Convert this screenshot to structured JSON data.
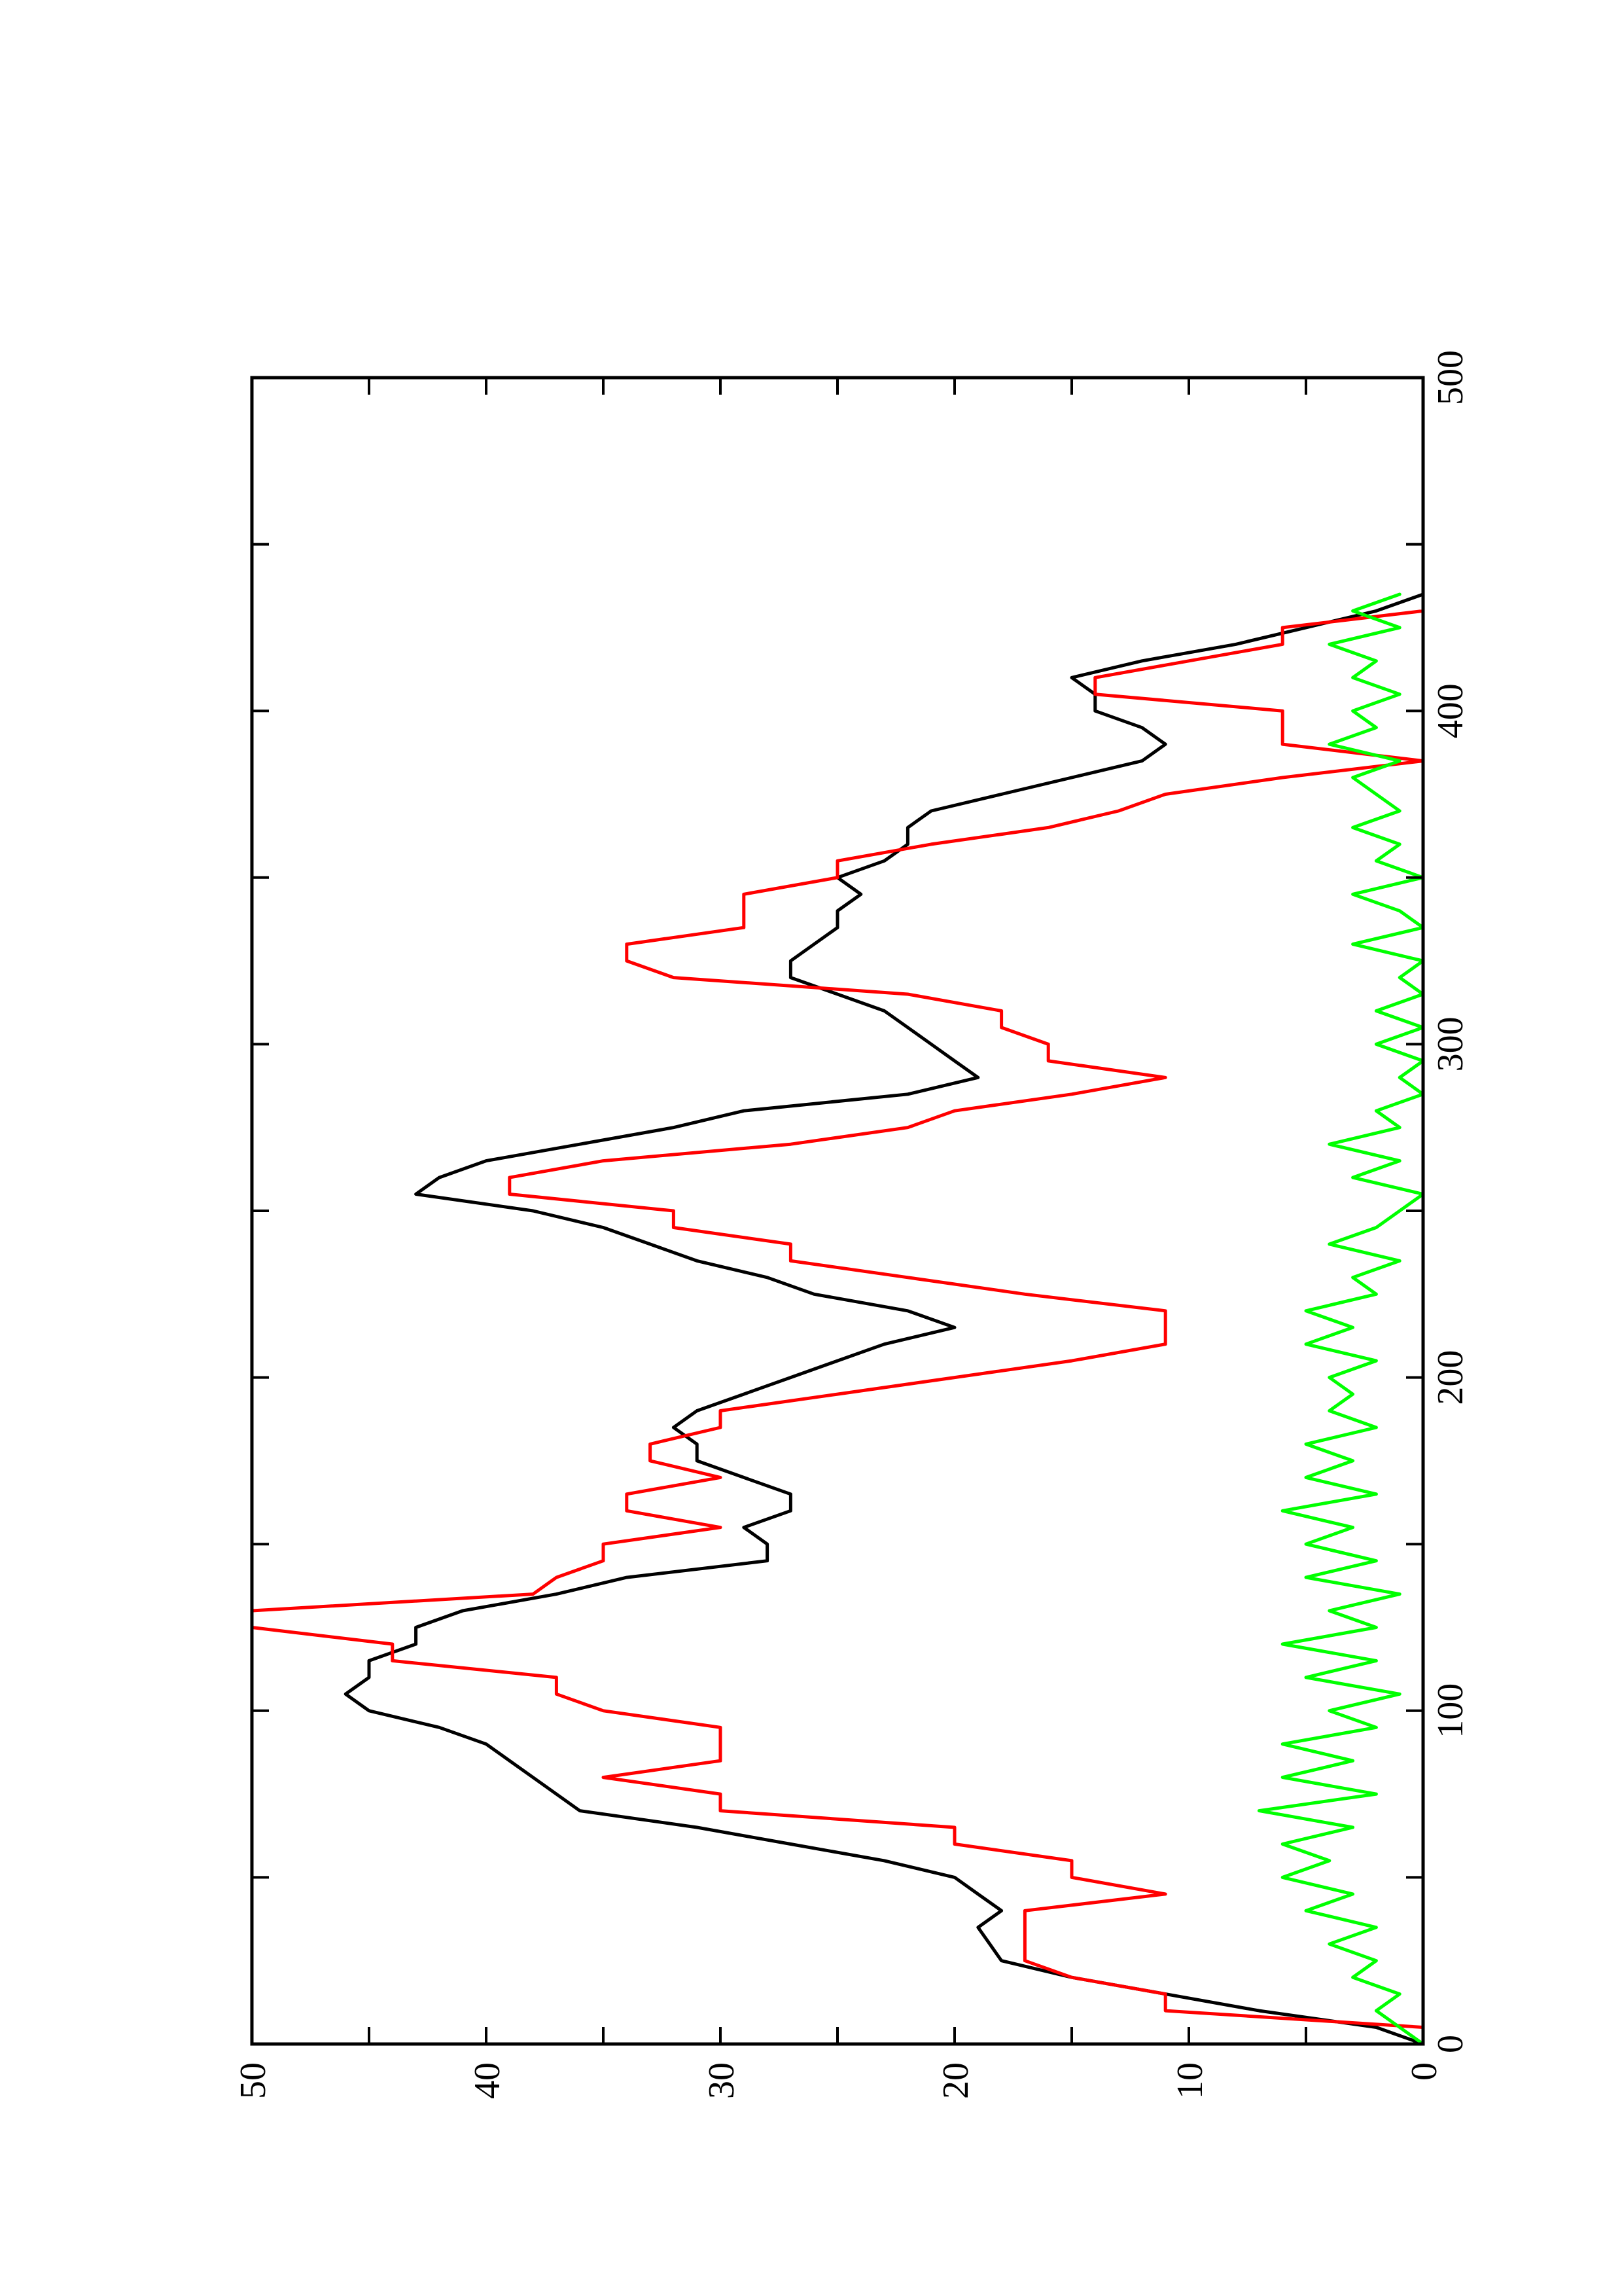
{
  "chart_data": {
    "type": "line",
    "title": "",
    "xlabel": "",
    "ylabel": "",
    "xlim": [
      0,
      500
    ],
    "ylim": [
      0,
      50
    ],
    "grid": false,
    "orientation": "page rotated 90 degrees counter-clockwise",
    "x_ticks": [
      0,
      100,
      200,
      300,
      400,
      500
    ],
    "x_minor_ticks": [
      50,
      150,
      250,
      350,
      450
    ],
    "y_ticks": [
      0,
      10,
      20,
      30,
      40,
      50
    ],
    "y_minor_ticks": [
      5,
      15,
      25,
      35,
      45
    ],
    "series": [
      {
        "color": "#000000",
        "points": [
          [
            0,
            0
          ],
          [
            5,
            2
          ],
          [
            10,
            7
          ],
          [
            15,
            11
          ],
          [
            20,
            15
          ],
          [
            25,
            18
          ],
          [
            30,
            18.5
          ],
          [
            35,
            19
          ],
          [
            40,
            18
          ],
          [
            45,
            19
          ],
          [
            50,
            20
          ],
          [
            55,
            23
          ],
          [
            60,
            27
          ],
          [
            65,
            31
          ],
          [
            70,
            36
          ],
          [
            75,
            37
          ],
          [
            80,
            38
          ],
          [
            85,
            39
          ],
          [
            90,
            40
          ],
          [
            95,
            42
          ],
          [
            100,
            45
          ],
          [
            105,
            46
          ],
          [
            110,
            45
          ],
          [
            115,
            45
          ],
          [
            120,
            43
          ],
          [
            125,
            43
          ],
          [
            130,
            41
          ],
          [
            135,
            37
          ],
          [
            140,
            34
          ],
          [
            145,
            28
          ],
          [
            150,
            28
          ],
          [
            155,
            29
          ],
          [
            160,
            27
          ],
          [
            165,
            27
          ],
          [
            170,
            29
          ],
          [
            175,
            31
          ],
          [
            180,
            31
          ],
          [
            185,
            32
          ],
          [
            190,
            31
          ],
          [
            195,
            29
          ],
          [
            200,
            27
          ],
          [
            205,
            25
          ],
          [
            210,
            23
          ],
          [
            215,
            20
          ],
          [
            220,
            22
          ],
          [
            225,
            26
          ],
          [
            230,
            28
          ],
          [
            235,
            31
          ],
          [
            240,
            33
          ],
          [
            245,
            35
          ],
          [
            250,
            38
          ],
          [
            255,
            43
          ],
          [
            260,
            42
          ],
          [
            265,
            40
          ],
          [
            270,
            36
          ],
          [
            275,
            32
          ],
          [
            280,
            29
          ],
          [
            285,
            22
          ],
          [
            290,
            19
          ],
          [
            295,
            20
          ],
          [
            300,
            21
          ],
          [
            305,
            22
          ],
          [
            310,
            23
          ],
          [
            315,
            25
          ],
          [
            320,
            27
          ],
          [
            325,
            27
          ],
          [
            330,
            26
          ],
          [
            335,
            25
          ],
          [
            340,
            25
          ],
          [
            345,
            24
          ],
          [
            350,
            25
          ],
          [
            355,
            23
          ],
          [
            360,
            22
          ],
          [
            365,
            22
          ],
          [
            370,
            21
          ],
          [
            375,
            18
          ],
          [
            380,
            15
          ],
          [
            385,
            12
          ],
          [
            390,
            11
          ],
          [
            395,
            12
          ],
          [
            400,
            14
          ],
          [
            405,
            14
          ],
          [
            410,
            15
          ],
          [
            415,
            12
          ],
          [
            420,
            8
          ],
          [
            425,
            5
          ],
          [
            430,
            2
          ],
          [
            435,
            0
          ]
        ]
      },
      {
        "color": "#ff0000",
        "points": [
          [
            0,
            0
          ],
          [
            5,
            0
          ],
          [
            10,
            11
          ],
          [
            15,
            11
          ],
          [
            20,
            15
          ],
          [
            25,
            17
          ],
          [
            30,
            17
          ],
          [
            35,
            17
          ],
          [
            40,
            17
          ],
          [
            45,
            11
          ],
          [
            50,
            15
          ],
          [
            55,
            15
          ],
          [
            60,
            20
          ],
          [
            65,
            20
          ],
          [
            70,
            30
          ],
          [
            75,
            30
          ],
          [
            80,
            35
          ],
          [
            85,
            30
          ],
          [
            90,
            30
          ],
          [
            95,
            30
          ],
          [
            100,
            35
          ],
          [
            105,
            37
          ],
          [
            110,
            37
          ],
          [
            115,
            44
          ],
          [
            120,
            44
          ],
          [
            125,
            50
          ],
          [
            130,
            50
          ],
          [
            135,
            38
          ],
          [
            140,
            37
          ],
          [
            145,
            35
          ],
          [
            150,
            35
          ],
          [
            155,
            30
          ],
          [
            160,
            34
          ],
          [
            165,
            34
          ],
          [
            170,
            30
          ],
          [
            175,
            33
          ],
          [
            180,
            33
          ],
          [
            185,
            30
          ],
          [
            190,
            30
          ],
          [
            195,
            25
          ],
          [
            200,
            20
          ],
          [
            205,
            15
          ],
          [
            210,
            11
          ],
          [
            215,
            11
          ],
          [
            220,
            11
          ],
          [
            225,
            17
          ],
          [
            230,
            22
          ],
          [
            235,
            27
          ],
          [
            240,
            27
          ],
          [
            245,
            32
          ],
          [
            250,
            32
          ],
          [
            255,
            39
          ],
          [
            260,
            39
          ],
          [
            265,
            35
          ],
          [
            270,
            27
          ],
          [
            275,
            22
          ],
          [
            280,
            20
          ],
          [
            285,
            15
          ],
          [
            290,
            11
          ],
          [
            295,
            16
          ],
          [
            300,
            16
          ],
          [
            305,
            18
          ],
          [
            310,
            18
          ],
          [
            315,
            22
          ],
          [
            320,
            32
          ],
          [
            325,
            34
          ],
          [
            330,
            34
          ],
          [
            335,
            29
          ],
          [
            340,
            29
          ],
          [
            345,
            29
          ],
          [
            350,
            25
          ],
          [
            355,
            25
          ],
          [
            360,
            21
          ],
          [
            365,
            16
          ],
          [
            370,
            13
          ],
          [
            375,
            11
          ],
          [
            380,
            6
          ],
          [
            385,
            0
          ],
          [
            390,
            6
          ],
          [
            395,
            6
          ],
          [
            400,
            6
          ],
          [
            405,
            14
          ],
          [
            410,
            14
          ],
          [
            415,
            10
          ],
          [
            420,
            6
          ],
          [
            425,
            6
          ],
          [
            430,
            0
          ],
          [
            435,
            0
          ]
        ]
      },
      {
        "color": "#00ff00",
        "points": [
          [
            0,
            0
          ],
          [
            5,
            1
          ],
          [
            10,
            2
          ],
          [
            15,
            1
          ],
          [
            20,
            3
          ],
          [
            25,
            2
          ],
          [
            30,
            4
          ],
          [
            35,
            2
          ],
          [
            40,
            5
          ],
          [
            45,
            3
          ],
          [
            50,
            6
          ],
          [
            55,
            4
          ],
          [
            60,
            6
          ],
          [
            65,
            3
          ],
          [
            70,
            7
          ],
          [
            75,
            2
          ],
          [
            80,
            6
          ],
          [
            85,
            3
          ],
          [
            90,
            6
          ],
          [
            95,
            2
          ],
          [
            100,
            4
          ],
          [
            105,
            1
          ],
          [
            110,
            5
          ],
          [
            115,
            2
          ],
          [
            120,
            6
          ],
          [
            125,
            2
          ],
          [
            130,
            4
          ],
          [
            135,
            1
          ],
          [
            140,
            5
          ],
          [
            145,
            2
          ],
          [
            150,
            5
          ],
          [
            155,
            3
          ],
          [
            160,
            6
          ],
          [
            165,
            2
          ],
          [
            170,
            5
          ],
          [
            175,
            3
          ],
          [
            180,
            5
          ],
          [
            185,
            2
          ],
          [
            190,
            4
          ],
          [
            195,
            3
          ],
          [
            200,
            4
          ],
          [
            205,
            2
          ],
          [
            210,
            5
          ],
          [
            215,
            3
          ],
          [
            220,
            5
          ],
          [
            225,
            2
          ],
          [
            230,
            3
          ],
          [
            235,
            1
          ],
          [
            240,
            4
          ],
          [
            245,
            2
          ],
          [
            250,
            1
          ],
          [
            255,
            0
          ],
          [
            260,
            3
          ],
          [
            265,
            1
          ],
          [
            270,
            4
          ],
          [
            275,
            1
          ],
          [
            280,
            2
          ],
          [
            285,
            0
          ],
          [
            290,
            1
          ],
          [
            295,
            0
          ],
          [
            300,
            2
          ],
          [
            305,
            0
          ],
          [
            310,
            2
          ],
          [
            315,
            0
          ],
          [
            320,
            1
          ],
          [
            325,
            0
          ],
          [
            330,
            3
          ],
          [
            335,
            0
          ],
          [
            340,
            1
          ],
          [
            345,
            3
          ],
          [
            350,
            0
          ],
          [
            355,
            2
          ],
          [
            360,
            1
          ],
          [
            365,
            3
          ],
          [
            370,
            1
          ],
          [
            375,
            2
          ],
          [
            380,
            3
          ],
          [
            385,
            1
          ],
          [
            390,
            4
          ],
          [
            395,
            2
          ],
          [
            400,
            3
          ],
          [
            405,
            1
          ],
          [
            410,
            3
          ],
          [
            415,
            2
          ],
          [
            420,
            4
          ],
          [
            425,
            1
          ],
          [
            430,
            3
          ],
          [
            435,
            1
          ]
        ]
      }
    ]
  }
}
